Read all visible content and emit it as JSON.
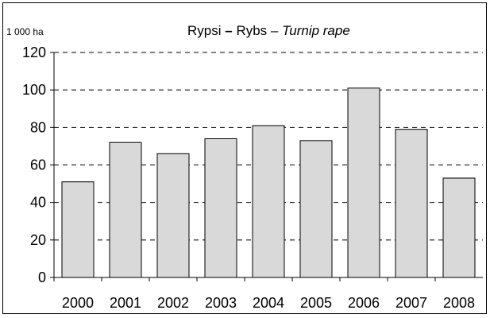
{
  "chart_data": {
    "type": "bar",
    "title_parts": {
      "fi": "Rypsi",
      "sep1": "–",
      "sv": "Rybs",
      "sep2": "–",
      "en": "Turnip rape"
    },
    "ylabel": "1 000 ha",
    "categories": [
      "2000",
      "2001",
      "2002",
      "2003",
      "2004",
      "2005",
      "2006",
      "2007",
      "2008"
    ],
    "values": [
      51,
      72,
      66,
      74,
      81,
      73,
      101,
      79,
      53
    ],
    "ylim": [
      0,
      120
    ],
    "yticks": [
      "0",
      "20",
      "40",
      "60",
      "80",
      "100",
      "120"
    ],
    "grid": true,
    "bar_fill": "#d9d9d9",
    "bar_stroke": "#000000"
  }
}
